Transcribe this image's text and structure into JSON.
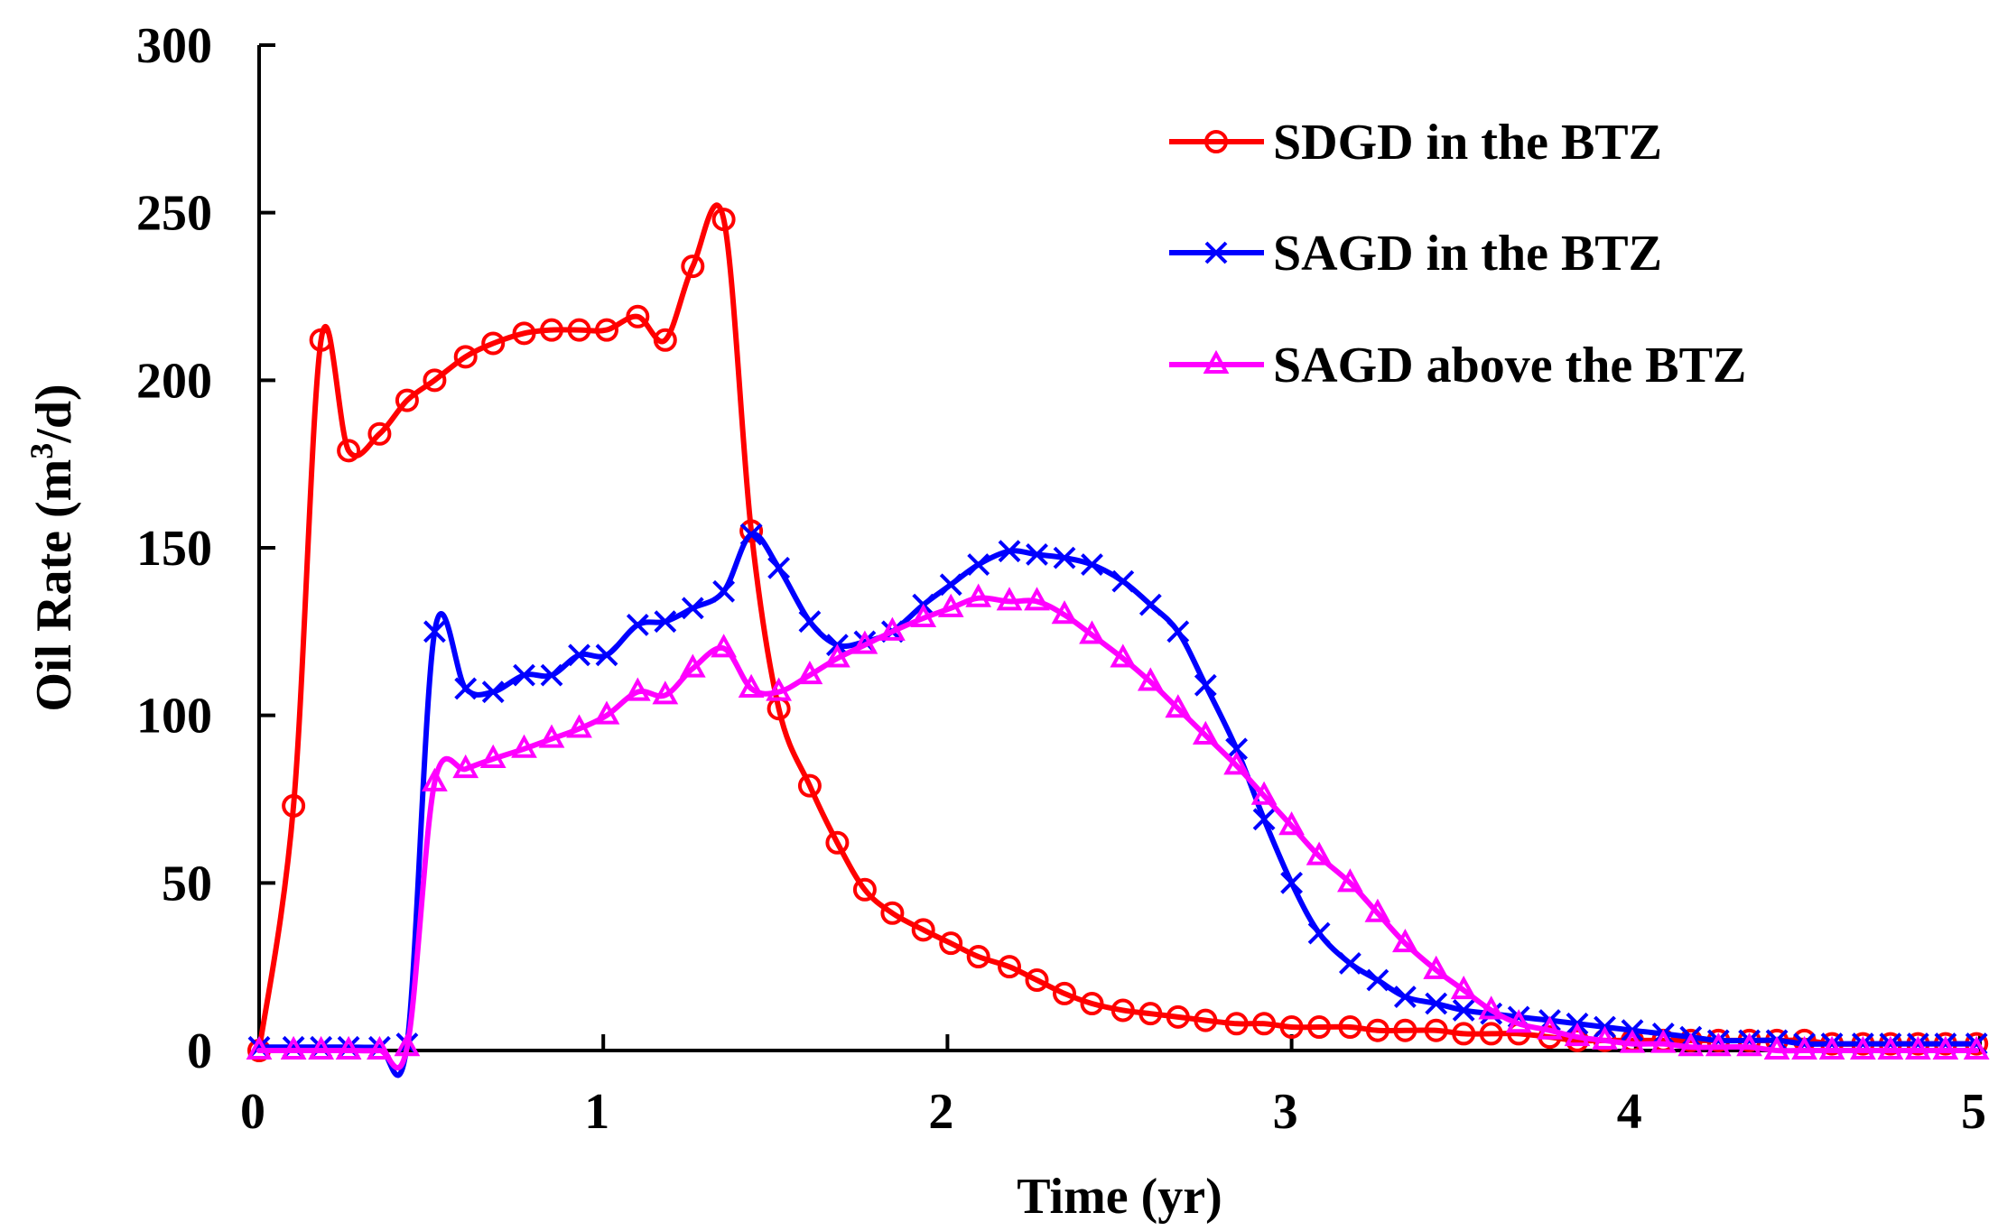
{
  "chart_data": {
    "type": "line",
    "title": "",
    "xlabel": "Time  (yr)",
    "ylabel_main": "Oil Rate (m",
    "ylabel_sup": "3",
    "ylabel_tail": "/d)",
    "xlim": [
      0,
      5
    ],
    "ylim": [
      0,
      300
    ],
    "xticks": [
      0,
      1,
      2,
      3,
      4,
      5
    ],
    "yticks": [
      0,
      50,
      100,
      150,
      200,
      250,
      300
    ],
    "xtick_labels": [
      "0",
      "1",
      "2",
      "3",
      "4",
      "5"
    ],
    "ytick_labels": [
      "0",
      "50",
      "100",
      "150",
      "200",
      "250",
      "300"
    ],
    "grid": false,
    "legend_position": "top-right",
    "series": [
      {
        "name": "SDGD in the BTZ",
        "color": "#ff0000",
        "marker": "circle",
        "x": [
          0.0,
          0.1,
          0.18,
          0.26,
          0.35,
          0.43,
          0.51,
          0.6,
          0.68,
          0.77,
          0.85,
          0.93,
          1.01,
          1.1,
          1.18,
          1.26,
          1.35,
          1.43,
          1.51,
          1.6,
          1.68,
          1.76,
          1.84,
          1.93,
          2.01,
          2.09,
          2.18,
          2.26,
          2.34,
          2.42,
          2.51,
          2.59,
          2.67,
          2.75,
          2.84,
          2.92,
          3.0,
          3.08,
          3.17,
          3.25,
          3.33,
          3.42,
          3.5,
          3.58,
          3.66,
          3.75,
          3.83,
          3.91,
          3.99,
          4.08,
          4.16,
          4.24,
          4.33,
          4.41,
          4.49,
          4.57,
          4.66,
          4.74,
          4.82,
          4.9,
          4.99
        ],
        "y": [
          0,
          73,
          212,
          179,
          184,
          194,
          200,
          207,
          211,
          214,
          215,
          215,
          215,
          219,
          212,
          234,
          248,
          155,
          102,
          79,
          62,
          48,
          41,
          36,
          32,
          28,
          25,
          21,
          17,
          14,
          12,
          11,
          10,
          9,
          8,
          8,
          7,
          7,
          7,
          6,
          6,
          6,
          5,
          5,
          5,
          4,
          3,
          3,
          3,
          3,
          3,
          3,
          3,
          3,
          3,
          2,
          2,
          2,
          2,
          2,
          2
        ]
      },
      {
        "name": "SAGD in the BTZ",
        "color": "#0000ff",
        "marker": "x",
        "x": [
          0.0,
          0.1,
          0.18,
          0.26,
          0.35,
          0.43,
          0.51,
          0.6,
          0.68,
          0.77,
          0.85,
          0.93,
          1.01,
          1.1,
          1.18,
          1.26,
          1.35,
          1.43,
          1.51,
          1.6,
          1.68,
          1.76,
          1.84,
          1.93,
          2.01,
          2.09,
          2.18,
          2.26,
          2.34,
          2.42,
          2.51,
          2.59,
          2.67,
          2.75,
          2.84,
          2.92,
          3.0,
          3.08,
          3.17,
          3.25,
          3.33,
          3.42,
          3.5,
          3.58,
          3.66,
          3.75,
          3.83,
          3.91,
          3.99,
          4.08,
          4.16,
          4.24,
          4.33,
          4.41,
          4.49,
          4.57,
          4.66,
          4.74,
          4.82,
          4.9,
          4.99
        ],
        "y": [
          1,
          1,
          1,
          1,
          1,
          2,
          125,
          108,
          107,
          112,
          112,
          118,
          118,
          127,
          128,
          132,
          137,
          154,
          144,
          128,
          121,
          122,
          125,
          133,
          139,
          145,
          149,
          148,
          147,
          145,
          140,
          133,
          125,
          109,
          90,
          69,
          50,
          35,
          26,
          21,
          16,
          14,
          12,
          11,
          10,
          9,
          8,
          7,
          6,
          5,
          4,
          3,
          3,
          3,
          2,
          2,
          2,
          2,
          2,
          2,
          2
        ]
      },
      {
        "name": "SAGD above the BTZ",
        "color": "#ff00ff",
        "marker": "triangle",
        "x": [
          0.0,
          0.1,
          0.18,
          0.26,
          0.35,
          0.43,
          0.51,
          0.6,
          0.68,
          0.77,
          0.85,
          0.93,
          1.01,
          1.1,
          1.18,
          1.26,
          1.35,
          1.43,
          1.51,
          1.6,
          1.68,
          1.76,
          1.84,
          1.93,
          2.01,
          2.09,
          2.18,
          2.26,
          2.34,
          2.42,
          2.51,
          2.59,
          2.67,
          2.75,
          2.84,
          2.92,
          3.0,
          3.08,
          3.17,
          3.25,
          3.33,
          3.42,
          3.5,
          3.58,
          3.66,
          3.75,
          3.83,
          3.91,
          3.99,
          4.08,
          4.16,
          4.24,
          4.33,
          4.41,
          4.49,
          4.57,
          4.66,
          4.74,
          4.82,
          4.9,
          4.99
        ],
        "y": [
          0,
          0,
          0,
          0,
          0,
          1,
          80,
          84,
          87,
          90,
          93,
          96,
          100,
          107,
          106,
          114,
          120,
          108,
          107,
          112,
          117,
          121,
          125,
          129,
          132,
          135,
          134,
          134,
          130,
          124,
          117,
          110,
          102,
          94,
          85,
          76,
          67,
          58,
          50,
          41,
          32,
          24,
          18,
          12,
          8,
          6,
          4,
          3,
          2,
          2,
          1,
          1,
          1,
          0,
          0,
          0,
          0,
          0,
          0,
          0,
          0
        ]
      }
    ]
  }
}
